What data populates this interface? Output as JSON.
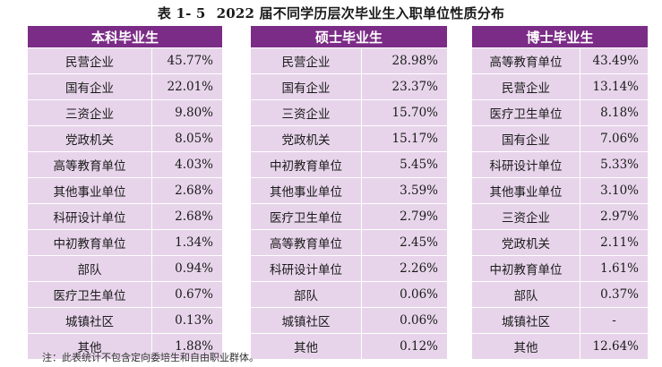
{
  "caption": {
    "number": "表 1- 5",
    "title": "2022 届不同学历层次毕业生入职单位性质分布"
  },
  "tables": [
    {
      "header": "本科毕业生",
      "rows": [
        {
          "name": "民营企业",
          "value": "45.77%"
        },
        {
          "name": "国有企业",
          "value": "22.01%"
        },
        {
          "name": "三资企业",
          "value": "9.80%"
        },
        {
          "name": "党政机关",
          "value": "8.05%"
        },
        {
          "name": "高等教育单位",
          "value": "4.03%"
        },
        {
          "name": "其他事业单位",
          "value": "2.68%"
        },
        {
          "name": "科研设计单位",
          "value": "2.68%"
        },
        {
          "name": "中初教育单位",
          "value": "1.34%"
        },
        {
          "name": "部队",
          "value": "0.94%"
        },
        {
          "name": "医疗卫生单位",
          "value": "0.67%"
        },
        {
          "name": "城镇社区",
          "value": "0.13%"
        },
        {
          "name": "其他",
          "value": "1.88%"
        }
      ]
    },
    {
      "header": "硕士毕业生",
      "rows": [
        {
          "name": "民营企业",
          "value": "28.98%"
        },
        {
          "name": "国有企业",
          "value": "23.37%"
        },
        {
          "name": "三资企业",
          "value": "15.70%"
        },
        {
          "name": "党政机关",
          "value": "15.17%"
        },
        {
          "name": "中初教育单位",
          "value": "5.45%"
        },
        {
          "name": "其他事业单位",
          "value": "3.59%"
        },
        {
          "name": "医疗卫生单位",
          "value": "2.79%"
        },
        {
          "name": "高等教育单位",
          "value": "2.45%"
        },
        {
          "name": "科研设计单位",
          "value": "2.26%"
        },
        {
          "name": "部队",
          "value": "0.06%"
        },
        {
          "name": "城镇社区",
          "value": "0.06%"
        },
        {
          "name": "其他",
          "value": "0.12%"
        }
      ]
    },
    {
      "header": "博士毕业生",
      "rows": [
        {
          "name": "高等教育单位",
          "value": "43.49%"
        },
        {
          "name": "民营企业",
          "value": "13.14%"
        },
        {
          "name": "医疗卫生单位",
          "value": "8.18%"
        },
        {
          "name": "国有企业",
          "value": "7.06%"
        },
        {
          "name": "科研设计单位",
          "value": "5.33%"
        },
        {
          "name": "其他事业单位",
          "value": "3.10%"
        },
        {
          "name": "三资企业",
          "value": "2.97%"
        },
        {
          "name": "党政机关",
          "value": "2.11%"
        },
        {
          "name": "中初教育单位",
          "value": "1.61%"
        },
        {
          "name": "部队",
          "value": "0.37%"
        },
        {
          "name": "城镇社区",
          "value": "-"
        },
        {
          "name": "其他",
          "value": "12.64%"
        }
      ]
    }
  ],
  "note": "注：此表统计不包含定向委培生和自由职业群体。",
  "colors": {
    "header_bg": "#7b2c86",
    "cell_bg": "#e7d4ea"
  }
}
